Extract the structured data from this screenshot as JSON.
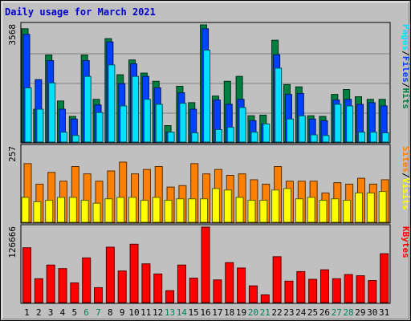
{
  "title": "Daily usage for March 2021",
  "colors": {
    "hits": "#008040",
    "files": "#0040ff",
    "pages": "#00e0ff",
    "visits": "#ff8000",
    "sites": "#ffff00",
    "kbytes": "#ff0000",
    "weekend_label": "#00805c",
    "weekday_label": "#000000"
  },
  "chart_data": [
    {
      "type": "bar",
      "panel": "hits-files-pages",
      "categories": [
        "1",
        "2",
        "3",
        "4",
        "5",
        "6",
        "7",
        "8",
        "9",
        "10",
        "11",
        "12",
        "13",
        "14",
        "15",
        "16",
        "17",
        "18",
        "19",
        "20",
        "21",
        "22",
        "23",
        "24",
        "25",
        "26",
        "27",
        "28",
        "29",
        "30",
        "31"
      ],
      "weekend_days": [
        "6",
        "7",
        "13",
        "14",
        "20",
        "21",
        "27",
        "28"
      ],
      "ymax_label": "3568",
      "ylim": [
        0,
        3568
      ],
      "legend": [
        {
          "text": "Pages",
          "color": "#00e0ff"
        },
        {
          "text": "/",
          "color": "#000000"
        },
        {
          "text": "Files",
          "color": "#0040ff"
        },
        {
          "text": "/",
          "color": "#000000"
        },
        {
          "text": "Hits",
          "color": "#008040"
        }
      ],
      "series": [
        {
          "name": "Hits",
          "values": [
            3450,
            1000,
            2650,
            1250,
            780,
            2650,
            1300,
            3150,
            2050,
            2500,
            2100,
            1850,
            500,
            1700,
            1200,
            3600,
            1400,
            1850,
            2000,
            800,
            820,
            3100,
            1750,
            1680,
            800,
            780,
            1450,
            1600,
            1380,
            1300,
            1300
          ]
        },
        {
          "name": "Files",
          "values": [
            3280,
            1900,
            2480,
            1000,
            700,
            2480,
            1130,
            3050,
            1780,
            2380,
            2000,
            1650,
            300,
            1500,
            1000,
            3450,
            1280,
            1150,
            1300,
            650,
            550,
            2660,
            1450,
            1480,
            700,
            650,
            1280,
            1300,
            1150,
            1200,
            1100
          ]
        },
        {
          "name": "Pages",
          "values": [
            1650,
            1000,
            1800,
            300,
            200,
            2000,
            900,
            2350,
            1100,
            2000,
            1300,
            1150,
            300,
            1180,
            280,
            2800,
            380,
            450,
            1050,
            300,
            550,
            2250,
            700,
            800,
            220,
            200,
            1150,
            1100,
            300,
            300,
            280
          ]
        }
      ]
    },
    {
      "type": "bar",
      "panel": "visits-sites",
      "categories": [
        "1",
        "2",
        "3",
        "4",
        "5",
        "6",
        "7",
        "8",
        "9",
        "10",
        "11",
        "12",
        "13",
        "14",
        "15",
        "16",
        "17",
        "18",
        "19",
        "20",
        "21",
        "22",
        "23",
        "24",
        "25",
        "26",
        "27",
        "28",
        "29",
        "30",
        "31"
      ],
      "ymax_label": "257",
      "ylim": [
        0,
        257
      ],
      "legend": [
        {
          "text": "Sites",
          "color": "#ff8000"
        },
        {
          "text": "/",
          "color": "#000000"
        },
        {
          "text": "Visits",
          "color": "#ffff00"
        }
      ],
      "series": [
        {
          "name": "Visits",
          "values": [
            200,
            130,
            170,
            140,
            190,
            165,
            140,
            175,
            205,
            165,
            180,
            190,
            120,
            125,
            200,
            165,
            180,
            160,
            165,
            145,
            130,
            190,
            140,
            140,
            140,
            100,
            135,
            130,
            150,
            130,
            145
          ]
        },
        {
          "name": "Sites",
          "values": [
            85,
            70,
            75,
            85,
            85,
            75,
            65,
            80,
            85,
            85,
            75,
            85,
            75,
            80,
            80,
            80,
            115,
            110,
            85,
            75,
            75,
            110,
            115,
            80,
            85,
            75,
            80,
            75,
            100,
            100,
            105
          ]
        }
      ]
    },
    {
      "type": "bar",
      "panel": "kbytes",
      "categories": [
        "1",
        "2",
        "3",
        "4",
        "5",
        "6",
        "7",
        "8",
        "9",
        "10",
        "11",
        "12",
        "13",
        "14",
        "15",
        "16",
        "17",
        "18",
        "19",
        "20",
        "21",
        "22",
        "23",
        "24",
        "25",
        "26",
        "27",
        "28",
        "29",
        "30",
        "31"
      ],
      "ymax_label": "126666",
      "ylim": [
        0,
        126666
      ],
      "legend": [
        {
          "text": "KBytes",
          "color": "#ff0000"
        }
      ],
      "series": [
        {
          "name": "KBytes",
          "values": [
            92000,
            40000,
            63000,
            57000,
            33000,
            75000,
            25000,
            93000,
            53000,
            98000,
            65000,
            48000,
            20000,
            63000,
            41000,
            127000,
            38000,
            67000,
            58000,
            28000,
            13000,
            77000,
            36000,
            52000,
            39000,
            55000,
            40000,
            47000,
            45000,
            37000,
            82000
          ]
        }
      ]
    }
  ]
}
